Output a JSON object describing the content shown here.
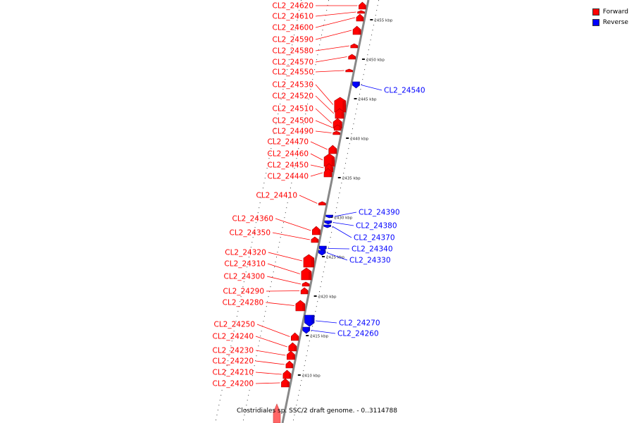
{
  "legend": [
    {
      "label": "Forward",
      "color": "#ff0000"
    },
    {
      "label": "Reverse",
      "color": "#0000ff"
    }
  ],
  "caption": "Clostridiales sp. SSC/2 draft genome. - 0..3114788",
  "colors": {
    "forward": "#ff0000",
    "reverse": "#0000ff",
    "backbone": "#888888"
  },
  "ticks": [
    {
      "kbp": 2455,
      "label": "2455 kbp"
    },
    {
      "kbp": 2450,
      "label": "2450 kbp"
    },
    {
      "kbp": 2445,
      "label": "2445 kbp"
    },
    {
      "kbp": 2440,
      "label": "2440 kbp"
    },
    {
      "kbp": 2435,
      "label": "2435 kbp"
    },
    {
      "kbp": 2430,
      "label": "2430 kbp"
    },
    {
      "kbp": 2425,
      "label": "2425 kbp"
    },
    {
      "kbp": 2420,
      "label": "2420 kbp"
    },
    {
      "kbp": 2415,
      "label": "2415 kbp"
    },
    {
      "kbp": 2410,
      "label": "2410 kbp"
    }
  ],
  "genes": [
    {
      "name": "CL2_24620",
      "strand": "forward"
    },
    {
      "name": "CL2_24610",
      "strand": "forward"
    },
    {
      "name": "CL2_24600",
      "strand": "forward"
    },
    {
      "name": "CL2_24590",
      "strand": "forward"
    },
    {
      "name": "CL2_24580",
      "strand": "forward"
    },
    {
      "name": "CL2_24570",
      "strand": "forward"
    },
    {
      "name": "CL2_24550",
      "strand": "forward"
    },
    {
      "name": "CL2_24540",
      "strand": "reverse"
    },
    {
      "name": "CL2_24530",
      "strand": "forward"
    },
    {
      "name": "CL2_24520",
      "strand": "forward"
    },
    {
      "name": "CL2_24510",
      "strand": "forward"
    },
    {
      "name": "CL2_24500",
      "strand": "forward"
    },
    {
      "name": "CL2_24490",
      "strand": "forward"
    },
    {
      "name": "CL2_24470",
      "strand": "forward"
    },
    {
      "name": "CL2_24460",
      "strand": "forward"
    },
    {
      "name": "CL2_24450",
      "strand": "forward"
    },
    {
      "name": "CL2_24440",
      "strand": "forward"
    },
    {
      "name": "CL2_24410",
      "strand": "forward"
    },
    {
      "name": "CL2_24390",
      "strand": "reverse"
    },
    {
      "name": "CL2_24380",
      "strand": "reverse"
    },
    {
      "name": "CL2_24370",
      "strand": "reverse"
    },
    {
      "name": "CL2_24360",
      "strand": "forward"
    },
    {
      "name": "CL2_24350",
      "strand": "forward"
    },
    {
      "name": "CL2_24340",
      "strand": "reverse"
    },
    {
      "name": "CL2_24330",
      "strand": "reverse"
    },
    {
      "name": "CL2_24320",
      "strand": "forward"
    },
    {
      "name": "CL2_24310",
      "strand": "forward"
    },
    {
      "name": "CL2_24300",
      "strand": "forward"
    },
    {
      "name": "CL2_24290",
      "strand": "forward"
    },
    {
      "name": "CL2_24280",
      "strand": "forward"
    },
    {
      "name": "CL2_24270",
      "strand": "reverse"
    },
    {
      "name": "CL2_24260",
      "strand": "reverse"
    },
    {
      "name": "CL2_24250",
      "strand": "forward"
    },
    {
      "name": "CL2_24240",
      "strand": "forward"
    },
    {
      "name": "CL2_24230",
      "strand": "forward"
    },
    {
      "name": "CL2_24220",
      "strand": "forward"
    },
    {
      "name": "CL2_24210",
      "strand": "forward"
    },
    {
      "name": "CL2_24200",
      "strand": "forward"
    }
  ]
}
